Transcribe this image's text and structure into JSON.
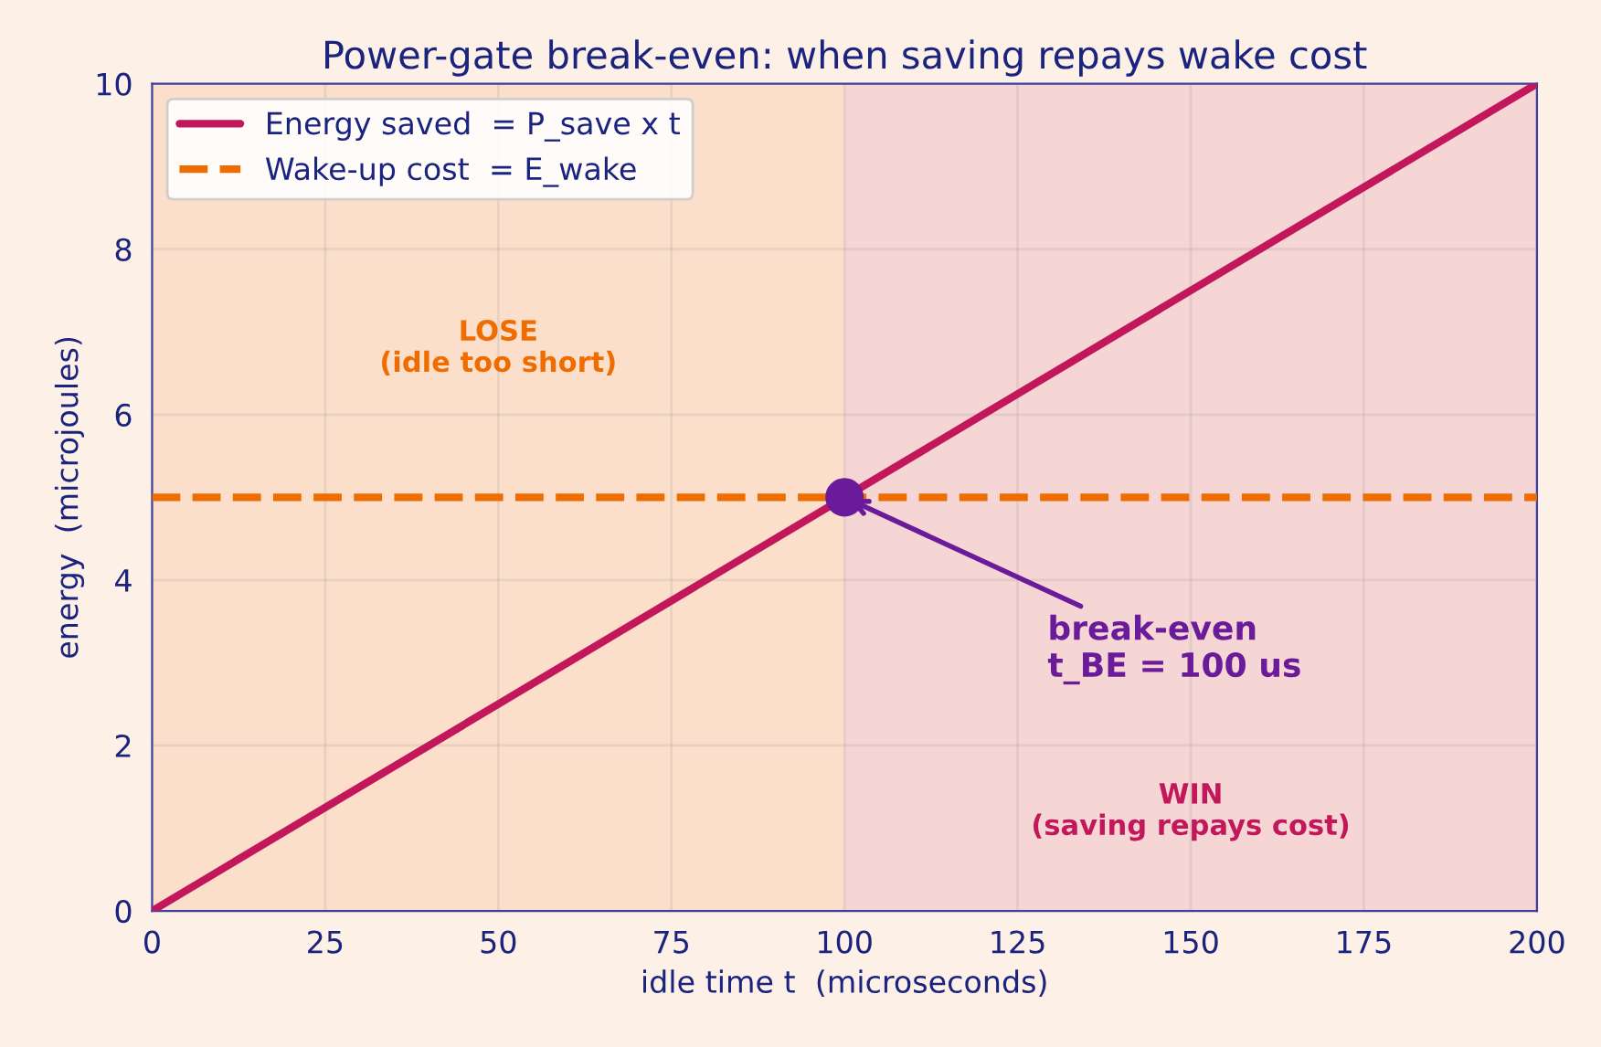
{
  "chart_data": {
    "type": "line",
    "title": "Power-gate break-even: when saving repays wake cost",
    "xlabel": "idle time t  (microseconds)",
    "ylabel": "energy  (microjoules)",
    "series": [
      {
        "name": "Energy saved  = P_save x t",
        "color": "#c2185b",
        "x": [
          0,
          200
        ],
        "values": [
          0,
          10
        ],
        "line_style": "solid"
      },
      {
        "name": "Wake-up cost  = E_wake",
        "color": "#ef6c00",
        "x": [
          0,
          200
        ],
        "values": [
          5,
          5
        ],
        "line_style": "dashed"
      },
      {
        "type": "scatter",
        "color": "#6a1b9a",
        "x": [
          100
        ],
        "values": [
          5
        ]
      }
    ],
    "bands": [
      {
        "axis": "x",
        "from": 0,
        "to": 100,
        "label": "LOSE\n(idle too short)",
        "color": "#ef6c00"
      },
      {
        "axis": "x",
        "from": 100,
        "to": 200,
        "label": "WIN\n(saving repays cost)",
        "color": "#c2185b"
      }
    ],
    "annotations": [
      {
        "text": "break-even\nt_BE = 100 us",
        "x": 100,
        "y": 5
      }
    ],
    "xlim": [
      0,
      200
    ],
    "ylim": [
      0,
      10
    ],
    "xticks": [
      0,
      25,
      50,
      75,
      100,
      125,
      150,
      175,
      200
    ],
    "yticks": [
      0,
      2,
      4,
      6,
      8,
      10
    ],
    "grid": true,
    "legend": "top left"
  }
}
